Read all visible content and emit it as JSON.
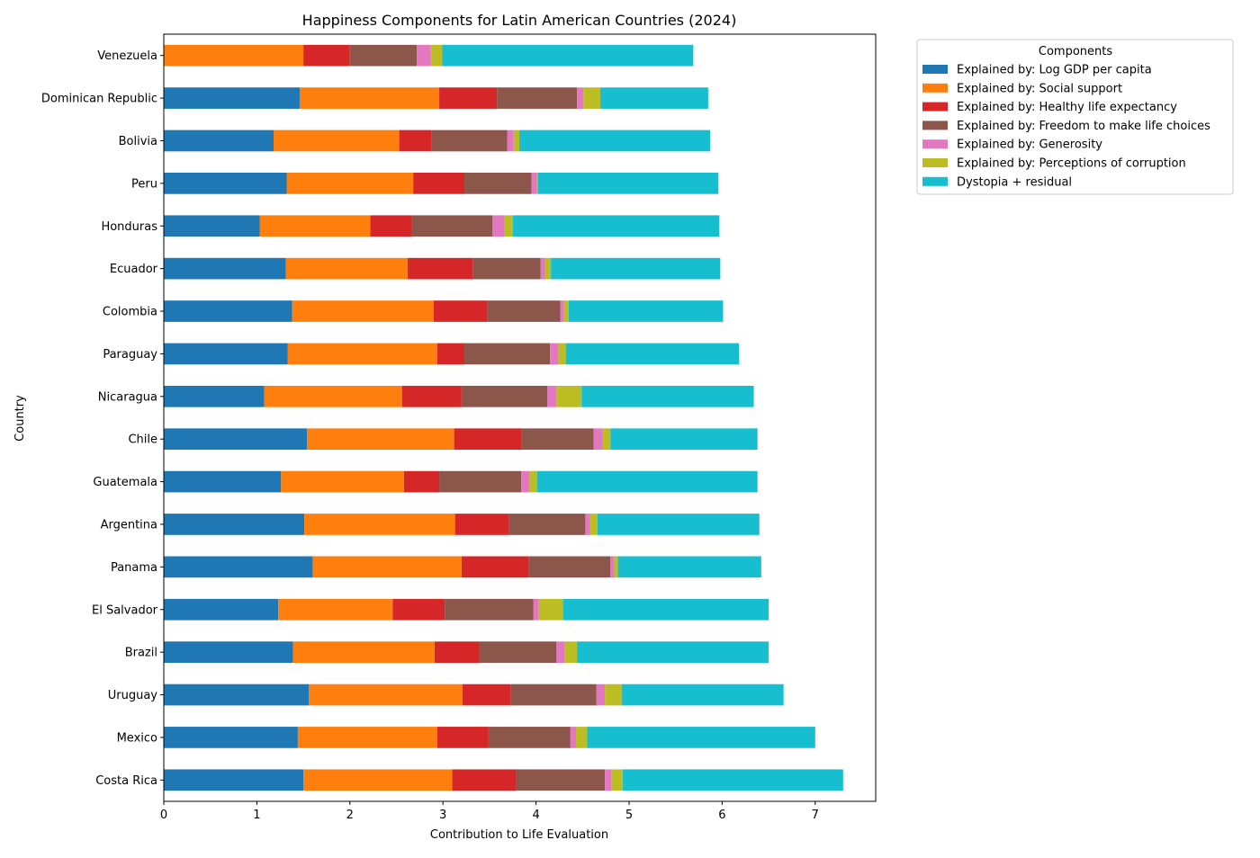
{
  "chart_data": {
    "type": "bar",
    "orientation": "horizontal",
    "stacked": true,
    "title": "Happiness Components for Latin American Countries (2024)",
    "xlabel": "Contribution to Life Evaluation",
    "ylabel": "Country",
    "xlim": [
      0,
      7.65
    ],
    "xticks": [
      0,
      1,
      2,
      3,
      4,
      5,
      6,
      7
    ],
    "grid": false,
    "legend": {
      "title": "Components",
      "placement": "outside-top-right"
    },
    "categories": [
      "Costa Rica",
      "Mexico",
      "Uruguay",
      "Brazil",
      "El Salvador",
      "Panama",
      "Argentina",
      "Guatemala",
      "Chile",
      "Nicaragua",
      "Paraguay",
      "Colombia",
      "Ecuador",
      "Honduras",
      "Peru",
      "Bolivia",
      "Dominican Republic",
      "Venezuela"
    ],
    "series": [
      {
        "name": "Explained by: Log GDP per capita",
        "color": "#1f77b4",
        "values": [
          1.5,
          1.44,
          1.56,
          1.39,
          1.23,
          1.6,
          1.51,
          1.26,
          1.54,
          1.08,
          1.33,
          1.38,
          1.31,
          1.03,
          1.32,
          1.18,
          1.46,
          0.0
        ]
      },
      {
        "name": "Explained by: Social support",
        "color": "#ff7f0e",
        "values": [
          1.6,
          1.5,
          1.65,
          1.52,
          1.23,
          1.6,
          1.62,
          1.32,
          1.58,
          1.48,
          1.61,
          1.52,
          1.31,
          1.19,
          1.36,
          1.35,
          1.5,
          1.5
        ]
      },
      {
        "name": "Explained by: Healthy life expectancy",
        "color": "#d62728",
        "values": [
          0.69,
          0.55,
          0.52,
          0.48,
          0.56,
          0.72,
          0.58,
          0.38,
          0.72,
          0.64,
          0.29,
          0.58,
          0.7,
          0.44,
          0.55,
          0.35,
          0.62,
          0.5
        ]
      },
      {
        "name": "Explained by: Freedom to make life choices",
        "color": "#8c564b",
        "values": [
          0.95,
          0.88,
          0.92,
          0.83,
          0.95,
          0.88,
          0.82,
          0.88,
          0.78,
          0.92,
          0.92,
          0.78,
          0.73,
          0.87,
          0.72,
          0.81,
          0.86,
          0.72
        ]
      },
      {
        "name": "Explained by: Generosity",
        "color": "#e377c2",
        "values": [
          0.07,
          0.06,
          0.09,
          0.09,
          0.06,
          0.04,
          0.05,
          0.09,
          0.09,
          0.1,
          0.09,
          0.04,
          0.05,
          0.13,
          0.06,
          0.07,
          0.07,
          0.15
        ]
      },
      {
        "name": "Explained by: Perceptions of corruption",
        "color": "#bcbd22",
        "values": [
          0.12,
          0.12,
          0.18,
          0.13,
          0.26,
          0.04,
          0.08,
          0.08,
          0.09,
          0.27,
          0.08,
          0.05,
          0.06,
          0.09,
          0.01,
          0.06,
          0.18,
          0.12
        ]
      },
      {
        "name": "Dystopia + residual",
        "color": "#17becf",
        "values": [
          2.37,
          2.45,
          1.74,
          2.06,
          2.21,
          1.54,
          1.74,
          2.37,
          1.58,
          1.85,
          1.86,
          1.66,
          1.82,
          2.22,
          1.94,
          2.05,
          1.16,
          2.7
        ]
      }
    ]
  }
}
